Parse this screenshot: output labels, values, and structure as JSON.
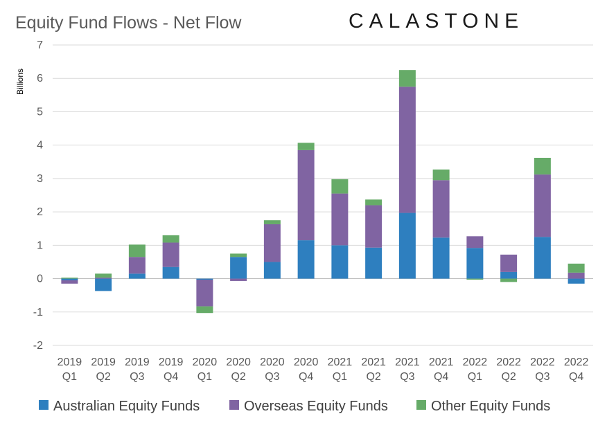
{
  "logo_text": "CALASTONE",
  "colors": {
    "aus": "#2e7fbf",
    "overseas": "#8064a2",
    "other": "#66ab68"
  },
  "chart_data": {
    "type": "bar",
    "stacked": true,
    "title": "Equity Fund Flows - Net Flow",
    "ylabel": "Billions",
    "ylim": [
      -2,
      7
    ],
    "yticks": [
      -2,
      -1,
      0,
      1,
      2,
      3,
      4,
      5,
      6,
      7
    ],
    "grid": true,
    "legend_position": "bottom",
    "categories": [
      [
        "2019",
        "Q1"
      ],
      [
        "2019",
        "Q2"
      ],
      [
        "2019",
        "Q3"
      ],
      [
        "2019",
        "Q4"
      ],
      [
        "2020",
        "Q1"
      ],
      [
        "2020",
        "Q2"
      ],
      [
        "2020",
        "Q3"
      ],
      [
        "2020",
        "Q4"
      ],
      [
        "2021",
        "Q1"
      ],
      [
        "2021",
        "Q2"
      ],
      [
        "2021",
        "Q3"
      ],
      [
        "2021",
        "Q4"
      ],
      [
        "2022",
        "Q1"
      ],
      [
        "2022",
        "Q2"
      ],
      [
        "2022",
        "Q3"
      ],
      [
        "2022",
        "Q4"
      ]
    ],
    "series": [
      {
        "name": "Australian Equity Funds",
        "color": "#2e7fbf",
        "values": [
          -0.05,
          -0.37,
          0.15,
          0.35,
          -0.03,
          0.65,
          0.5,
          1.15,
          1.0,
          0.93,
          1.97,
          1.23,
          0.92,
          0.2,
          1.25,
          -0.15
        ]
      },
      {
        "name": "Overseas Equity Funds",
        "color": "#8064a2",
        "values": [
          -0.1,
          0.03,
          0.5,
          0.73,
          -0.8,
          -0.07,
          1.13,
          2.7,
          1.55,
          1.27,
          3.78,
          1.72,
          0.35,
          0.52,
          1.87,
          0.18
        ]
      },
      {
        "name": "Other Equity Funds",
        "color": "#66ab68",
        "values": [
          0.03,
          0.12,
          0.37,
          0.22,
          -0.2,
          0.1,
          0.12,
          0.22,
          0.43,
          0.17,
          0.5,
          0.32,
          -0.03,
          -0.1,
          0.5,
          0.27
        ]
      }
    ]
  }
}
